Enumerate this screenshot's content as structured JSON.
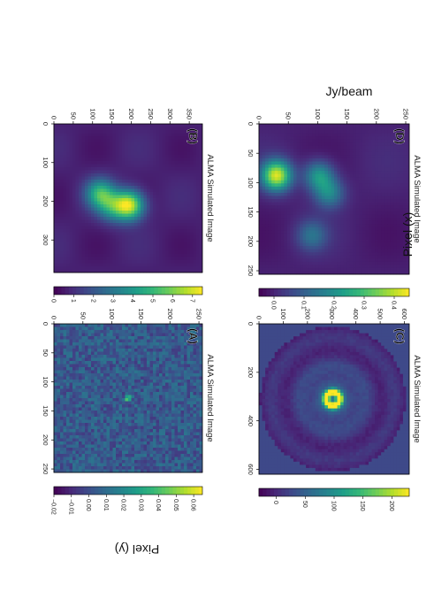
{
  "figure": {
    "orientation": "rotated 90 degrees clockwise",
    "colormap": "viridis",
    "colorbar_label": "Jy/beam",
    "x_label": "Pixel (x)",
    "y_label": "Pixel (y)"
  },
  "chart_data": [
    {
      "type": "heatmap",
      "panel": "(A)",
      "title": "ALMA Simulated Image",
      "xlabel": "",
      "ylabel": "Pixel (y)",
      "xlim": [
        0,
        256
      ],
      "ylim": [
        0,
        256
      ],
      "xticks": [
        "0",
        "50",
        "100",
        "150",
        "200",
        "250"
      ],
      "yticks": [
        "0",
        "50",
        "100",
        "150",
        "200",
        "250"
      ],
      "colorbar": {
        "label": "",
        "min": -0.02,
        "max": 0.065,
        "ticks": [
          "-0.02",
          "-0.01",
          "0.00",
          "0.01",
          "0.02",
          "0.03",
          "0.04",
          "0.05",
          "0.06"
        ]
      },
      "features": [
        {
          "kind": "point-source",
          "x": 128,
          "y": 128,
          "peak": 0.06
        }
      ],
      "background": "noise"
    },
    {
      "type": "heatmap",
      "panel": "(B)",
      "title": "ALMA Simulated Image",
      "xlabel": "",
      "ylabel": "",
      "xlim": [
        0,
        384
      ],
      "ylim": [
        0,
        384
      ],
      "xticks": [
        "0",
        "100",
        "200",
        "300"
      ],
      "yticks": [
        "0",
        "50",
        "100",
        "150",
        "200",
        "250",
        "300",
        "350"
      ],
      "colorbar": {
        "label": "Jy/beam",
        "min": 0,
        "max": 7.5,
        "ticks": [
          "0",
          "1",
          "2",
          "3",
          "4",
          "5",
          "6",
          "7"
        ]
      },
      "features": [
        {
          "kind": "blob",
          "x": 210,
          "y": 195,
          "peak": 7.0
        },
        {
          "kind": "blob",
          "x": 180,
          "y": 120,
          "peak": 4.5
        },
        {
          "kind": "blob",
          "x": 215,
          "y": 150,
          "peak": 3.0
        }
      ],
      "background": "smooth"
    },
    {
      "type": "heatmap",
      "panel": "(C)",
      "title": "ALMA Simulated Image",
      "xlabel": "Pixel (x)",
      "ylabel": "Pixel (y)",
      "xlim": [
        0,
        620
      ],
      "ylim": [
        0,
        620
      ],
      "xticks": [
        "0",
        "200",
        "400",
        "600"
      ],
      "yticks": [
        "0",
        "100",
        "200",
        "300",
        "400",
        "500",
        "600"
      ],
      "colorbar": {
        "label": "",
        "min": -30,
        "max": 230,
        "ticks": [
          "0",
          "50",
          "100",
          "150",
          "200"
        ]
      },
      "features": [
        {
          "kind": "ring",
          "x": 310,
          "y": 305,
          "peak": 220
        }
      ],
      "background": "circular-mask"
    },
    {
      "type": "heatmap",
      "panel": "(D)",
      "title": "ALMA Simulated Image",
      "xlabel": "Pixel (x)",
      "ylabel": "",
      "xlim": [
        0,
        256
      ],
      "ylim": [
        0,
        256
      ],
      "xticks": [
        "0",
        "50",
        "100",
        "150",
        "200",
        "250"
      ],
      "yticks": [
        "0",
        "50",
        "100",
        "150",
        "200",
        "250"
      ],
      "colorbar": {
        "label": "Jy/beam",
        "min": -0.05,
        "max": 0.45,
        "ticks": [
          "0.0",
          "0.1",
          "0.2",
          "0.3",
          "0.4"
        ]
      },
      "features": [
        {
          "kind": "blob",
          "x": 88,
          "y": 30,
          "peak": 0.42
        },
        {
          "kind": "blob",
          "x": 88,
          "y": 102,
          "peak": 0.2
        },
        {
          "kind": "blob",
          "x": 118,
          "y": 120,
          "peak": 0.15
        },
        {
          "kind": "blob",
          "x": 190,
          "y": 90,
          "peak": 0.1
        }
      ],
      "background": "smooth"
    }
  ]
}
